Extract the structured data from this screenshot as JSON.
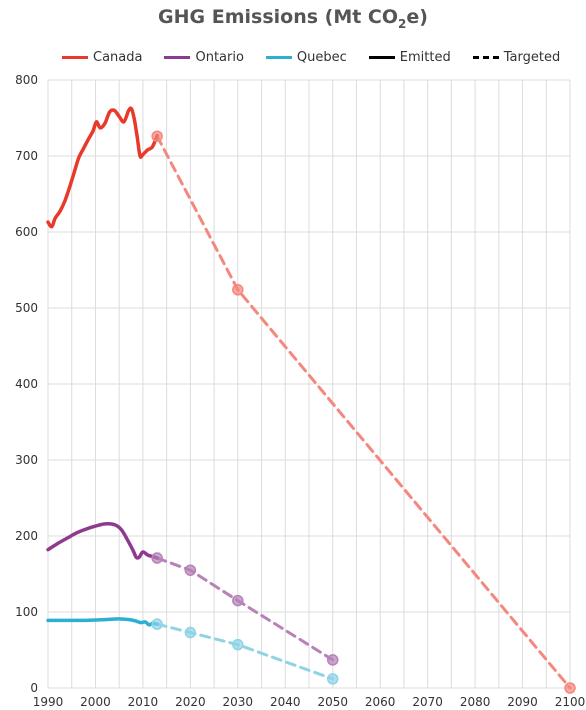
{
  "chart_data": {
    "type": "line",
    "title": "GHG Emissions (Mt CO",
    "title_sub": "2",
    "title_suffix": "e)",
    "xlim": [
      1990,
      2100
    ],
    "ylim": [
      0,
      800
    ],
    "x_ticks": [
      1990,
      2000,
      2010,
      2020,
      2030,
      2040,
      2050,
      2060,
      2070,
      2080,
      2090,
      2100
    ],
    "y_ticks": [
      0,
      100,
      200,
      300,
      400,
      500,
      600,
      700,
      800
    ],
    "grid": true,
    "legend_position": "top",
    "legend": [
      {
        "label": "Canada",
        "color": "#e8392b",
        "style": "solid"
      },
      {
        "label": "Ontario",
        "color": "#8e3a8e",
        "style": "solid"
      },
      {
        "label": "Quebec",
        "color": "#2bb0d1",
        "style": "solid"
      },
      {
        "label": "Emitted",
        "color": "#000000",
        "style": "solid"
      },
      {
        "label": "Targeted",
        "color": "#000000",
        "style": "dashed"
      }
    ],
    "series": [
      {
        "name": "Canada",
        "color": "#e8392b",
        "target_color": "#f4877e",
        "emitted": [
          [
            1990,
            613
          ],
          [
            1990.8,
            607
          ],
          [
            1991.5,
            618
          ],
          [
            1992.5,
            627
          ],
          [
            1993.5,
            640
          ],
          [
            1994.5,
            658
          ],
          [
            1995.5,
            678
          ],
          [
            1996.5,
            698
          ],
          [
            1997.5,
            710
          ],
          [
            1998.5,
            722
          ],
          [
            1999.5,
            733
          ],
          [
            2000.2,
            745
          ],
          [
            2001,
            737
          ],
          [
            2002,
            743
          ],
          [
            2003,
            758
          ],
          [
            2004,
            760
          ],
          [
            2005,
            752
          ],
          [
            2006,
            745
          ],
          [
            2007,
            760
          ],
          [
            2007.6,
            762
          ],
          [
            2008.2,
            748
          ],
          [
            2008.8,
            725
          ],
          [
            2009.4,
            700
          ],
          [
            2010,
            702
          ],
          [
            2011,
            708
          ],
          [
            2012,
            712
          ],
          [
            2013,
            727
          ]
        ],
        "targets": [
          [
            2013,
            726
          ],
          [
            2030,
            524
          ],
          [
            2100,
            0
          ]
        ]
      },
      {
        "name": "Ontario",
        "color": "#8e3a8e",
        "target_color": "#b782b8",
        "emitted": [
          [
            1990,
            182
          ],
          [
            1992,
            190
          ],
          [
            1994,
            197
          ],
          [
            1996,
            204
          ],
          [
            1998,
            209
          ],
          [
            2000,
            213
          ],
          [
            2002,
            216
          ],
          [
            2004,
            215
          ],
          [
            2005.5,
            208
          ],
          [
            2007,
            192
          ],
          [
            2008,
            180
          ],
          [
            2008.6,
            172
          ],
          [
            2009.2,
            172
          ],
          [
            2010,
            179
          ],
          [
            2011,
            175
          ],
          [
            2012,
            173
          ],
          [
            2013,
            171
          ]
        ],
        "targets": [
          [
            2013,
            171
          ],
          [
            2020,
            155
          ],
          [
            2030,
            115
          ],
          [
            2050,
            37
          ]
        ]
      },
      {
        "name": "Quebec",
        "color": "#2bb0d1",
        "target_color": "#8fd3e6",
        "emitted": [
          [
            1990,
            89
          ],
          [
            1994,
            89
          ],
          [
            1998,
            89
          ],
          [
            2002,
            90
          ],
          [
            2005,
            91
          ],
          [
            2008,
            89
          ],
          [
            2009.5,
            86
          ],
          [
            2010.5,
            87
          ],
          [
            2011.3,
            83
          ],
          [
            2012,
            85
          ],
          [
            2013,
            84
          ]
        ],
        "targets": [
          [
            2013,
            84
          ],
          [
            2020,
            73
          ],
          [
            2030,
            57
          ],
          [
            2050,
            12
          ]
        ]
      }
    ]
  }
}
